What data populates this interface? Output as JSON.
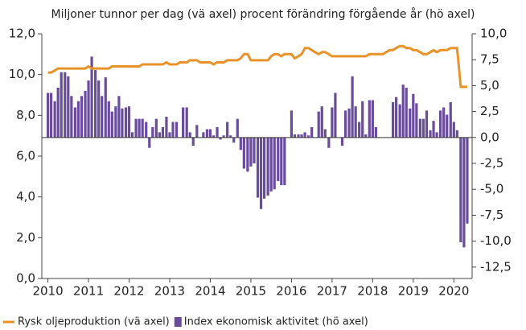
{
  "chart_data": {
    "type": "combo",
    "subtitle": "Miljoner tunnor per dag (vä axel) procent förändring förgående år (hö axel)",
    "x": [
      2010.0,
      2010.08,
      2010.17,
      2010.25,
      2010.33,
      2010.42,
      2010.5,
      2010.58,
      2010.67,
      2010.75,
      2010.83,
      2010.92,
      2011.0,
      2011.08,
      2011.17,
      2011.25,
      2011.33,
      2011.42,
      2011.5,
      2011.58,
      2011.67,
      2011.75,
      2011.83,
      2011.92,
      2012.0,
      2012.08,
      2012.17,
      2012.25,
      2012.33,
      2012.42,
      2012.5,
      2012.58,
      2012.67,
      2012.75,
      2012.83,
      2012.92,
      2013.0,
      2013.08,
      2013.17,
      2013.25,
      2013.33,
      2013.42,
      2013.5,
      2013.58,
      2013.67,
      2013.75,
      2013.83,
      2013.92,
      2014.0,
      2014.08,
      2014.17,
      2014.25,
      2014.33,
      2014.42,
      2014.5,
      2014.58,
      2014.67,
      2014.75,
      2014.83,
      2014.92,
      2015.0,
      2015.08,
      2015.17,
      2015.25,
      2015.33,
      2015.42,
      2015.5,
      2015.58,
      2015.67,
      2015.75,
      2015.83,
      2015.92,
      2016.0,
      2016.08,
      2016.17,
      2016.25,
      2016.33,
      2016.42,
      2016.5,
      2016.58,
      2016.67,
      2016.75,
      2016.83,
      2016.92,
      2017.0,
      2017.08,
      2017.17,
      2017.25,
      2017.33,
      2017.42,
      2017.5,
      2017.58,
      2017.67,
      2017.75,
      2017.83,
      2017.92,
      2018.0,
      2018.08,
      2018.17,
      2018.25,
      2018.33,
      2018.42,
      2018.5,
      2018.58,
      2018.67,
      2018.75,
      2018.83,
      2018.92,
      2019.0,
      2019.08,
      2019.17,
      2019.25,
      2019.33,
      2019.42,
      2019.5,
      2019.58,
      2019.67,
      2019.75,
      2019.83,
      2019.92,
      2020.0,
      2020.08,
      2020.17,
      2020.25,
      2020.33
    ],
    "series": [
      {
        "name": "Rysk oljeproduktion (vä axel)",
        "color": "#e8932a",
        "type": "line",
        "values": [
          10.1,
          10.1,
          10.2,
          10.3,
          10.3,
          10.3,
          10.3,
          10.3,
          10.3,
          10.3,
          10.3,
          10.3,
          10.4,
          10.3,
          10.3,
          10.3,
          10.3,
          10.3,
          10.3,
          10.4,
          10.4,
          10.4,
          10.4,
          10.4,
          10.4,
          10.4,
          10.4,
          10.4,
          10.5,
          10.5,
          10.5,
          10.5,
          10.5,
          10.5,
          10.5,
          10.6,
          10.5,
          10.5,
          10.5,
          10.6,
          10.6,
          10.6,
          10.7,
          10.7,
          10.7,
          10.6,
          10.6,
          10.6,
          10.6,
          10.5,
          10.6,
          10.6,
          10.6,
          10.7,
          10.7,
          10.7,
          10.7,
          10.8,
          11.0,
          11.0,
          10.7,
          10.7,
          10.7,
          10.7,
          10.7,
          10.7,
          10.9,
          11.0,
          11.0,
          10.9,
          11.0,
          11.0,
          11.0,
          10.8,
          10.9,
          11.0,
          11.3,
          11.3,
          11.2,
          11.1,
          11.0,
          11.1,
          11.1,
          11.0,
          10.9,
          10.9,
          10.9,
          10.9,
          10.9,
          10.9,
          10.9,
          10.9,
          10.9,
          10.9,
          10.9,
          11.0,
          11.0,
          11.0,
          11.0,
          11.0,
          11.1,
          11.2,
          11.2,
          11.3,
          11.4,
          11.4,
          11.3,
          11.3,
          11.2,
          11.2,
          11.1,
          11.0,
          11.0,
          11.1,
          11.2,
          11.1,
          11.2,
          11.2,
          11.2,
          11.3,
          11.3,
          11.3,
          9.4,
          9.4,
          9.4
        ]
      },
      {
        "name": "Index ekonomisk aktivitet (hö axel)",
        "color": "#6a4c9c",
        "type": "bar",
        "axis": "y2",
        "values": [
          4.3,
          4.3,
          3.5,
          4.8,
          6.3,
          6.3,
          5.9,
          4.0,
          2.9,
          3.5,
          4.0,
          4.5,
          5.5,
          7.8,
          6.5,
          5.5,
          4.0,
          5.8,
          3.5,
          2.5,
          3.0,
          4.0,
          2.8,
          2.9,
          3.0,
          0.5,
          1.8,
          1.8,
          1.8,
          1.5,
          -1.0,
          1.0,
          1.8,
          0.5,
          1.0,
          2.0,
          0.5,
          1.5,
          1.5,
          0.0,
          2.9,
          2.9,
          0.5,
          -0.8,
          1.2,
          0.0,
          0.5,
          0.8,
          0.8,
          0.2,
          1.0,
          -0.2,
          0.2,
          1.5,
          0.2,
          -0.5,
          1.8,
          -1.2,
          -3.0,
          -3.3,
          -2.8,
          -2.5,
          -5.8,
          -6.9,
          -5.9,
          -5.6,
          -5.2,
          -5.0,
          -4.2,
          -4.6,
          -4.6,
          0.0,
          2.6,
          0.3,
          0.3,
          0.3,
          0.5,
          0.2,
          1.0,
          0.0,
          2.5,
          3.0,
          0.8,
          -1.0,
          2.9,
          4.3,
          0.0,
          -0.8,
          2.6,
          2.8,
          5.9,
          3.0,
          1.5,
          3.5,
          0.3,
          3.6,
          3.6,
          1.0,
          0.0,
          0.0,
          0.0,
          0.0,
          3.4,
          3.9,
          3.2,
          5.1,
          4.8,
          2.8,
          4.2,
          3.3,
          1.8,
          1.8,
          2.6,
          0.7,
          1.6,
          0.5,
          2.6,
          2.9,
          2.2,
          3.4,
          1.5,
          0.7,
          -10.1,
          -10.6,
          -8.3
        ]
      }
    ],
    "xlim": [
      2009.85,
      2020.45
    ],
    "xticks": [
      2010,
      2011,
      2012,
      2013,
      2014,
      2015,
      2016,
      2017,
      2018,
      2019,
      2020
    ],
    "ylim": [
      0,
      12
    ],
    "yticks": [
      {
        "value": 0,
        "label": "0,0"
      },
      {
        "value": 2,
        "label": "2,0"
      },
      {
        "value": 4,
        "label": "4,0"
      },
      {
        "value": 6,
        "label": "6,0"
      },
      {
        "value": 8,
        "label": "8,0"
      },
      {
        "value": 10,
        "label": "10,0"
      },
      {
        "value": 12,
        "label": "12,0"
      }
    ],
    "y2lim": [
      -13.6,
      10
    ],
    "y2ticks": [
      {
        "value": 10,
        "label": "10,0"
      },
      {
        "value": 7.5,
        "label": "7,5"
      },
      {
        "value": 5,
        "label": "5,0"
      },
      {
        "value": 2.5,
        "label": "2,5"
      },
      {
        "value": 0,
        "label": "0,0"
      },
      {
        "value": -2.5,
        "label": "-2,5"
      },
      {
        "value": -5,
        "label": "-5,0"
      },
      {
        "value": -7.5,
        "label": "-7,5"
      },
      {
        "value": -10,
        "label": "-10,0"
      },
      {
        "value": -12.5,
        "label": "-12,5"
      }
    ],
    "legend": "bottom-left"
  }
}
